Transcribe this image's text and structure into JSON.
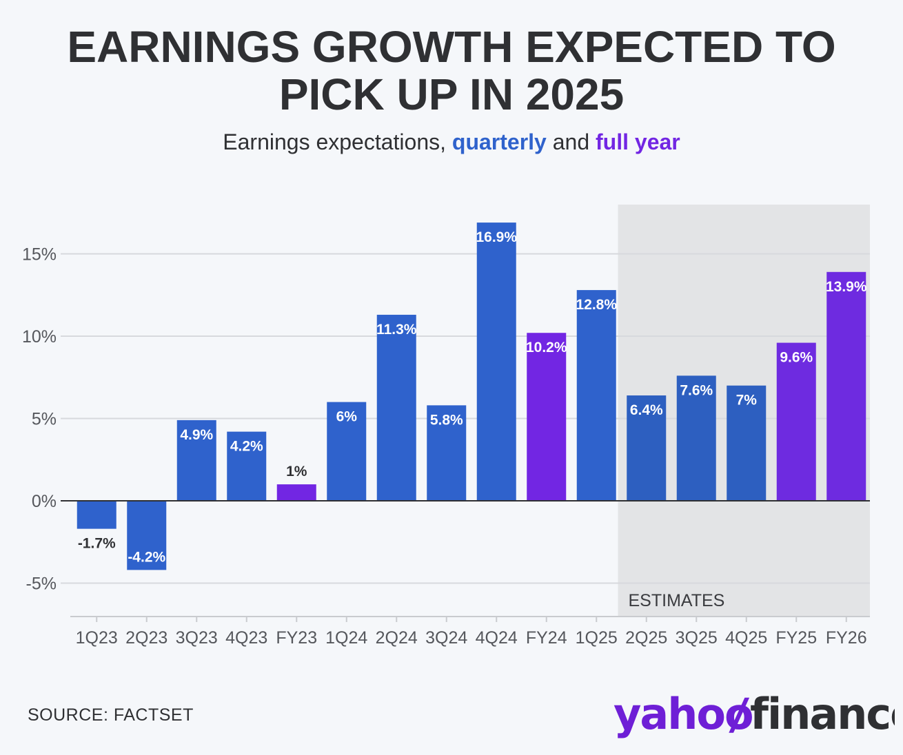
{
  "title_line1": "EARNINGS GROWTH EXPECTED TO",
  "title_line2": "PICK UP IN 2025",
  "subtitle": {
    "prefix": "Earnings expectations, ",
    "quarterly": "quarterly",
    "middle": " and ",
    "full_year": "full year"
  },
  "source": "SOURCE: FACTSET",
  "logo": {
    "yahoo": "yahoo",
    "bang": "/",
    "finance": "finance"
  },
  "colors": {
    "quarterly": "#2f62cc",
    "quarterly_estimate": "#2d5fc0",
    "full_year": "#7226e3",
    "full_year_estimate": "#6e2be0",
    "text": "#2f3033",
    "estimates_band": "#e3e4e6",
    "logo_purple": "#6e1fd6"
  },
  "chart_data": {
    "type": "bar",
    "title": "EARNINGS GROWTH EXPECTED TO PICK UP IN 2025",
    "subtitle": "Earnings expectations, quarterly and full year",
    "categories": [
      "1Q23",
      "2Q23",
      "3Q23",
      "4Q23",
      "FY23",
      "1Q24",
      "2Q24",
      "3Q24",
      "4Q24",
      "FY24",
      "1Q25",
      "2Q25",
      "3Q25",
      "4Q25",
      "FY25",
      "FY26"
    ],
    "values": [
      -1.7,
      -4.2,
      4.9,
      4.2,
      1,
      6,
      11.3,
      5.8,
      16.9,
      10.2,
      12.8,
      6.4,
      7.6,
      7,
      9.6,
      13.9
    ],
    "labels": [
      "-1.7%",
      "-4.2%",
      "4.9%",
      "4.2%",
      "1%",
      "6%",
      "11.3%",
      "5.8%",
      "16.9%",
      "10.2%",
      "12.8%",
      "6.4%",
      "7.6%",
      "7%",
      "9.6%",
      "13.9%"
    ],
    "kinds": [
      "quarterly",
      "quarterly",
      "quarterly",
      "quarterly",
      "full_year",
      "quarterly",
      "quarterly",
      "quarterly",
      "quarterly",
      "full_year",
      "quarterly",
      "quarterly",
      "quarterly",
      "quarterly",
      "full_year",
      "full_year"
    ],
    "yticks": [
      15,
      10,
      5,
      0,
      -5
    ],
    "ytick_labels": [
      "15%",
      "10%",
      "5%",
      "0%",
      "-5%"
    ],
    "ylim": [
      -7,
      18
    ],
    "estimates_from": "2Q25",
    "estimates_label": "ESTIMATES",
    "grid": true,
    "xlabel": "",
    "ylabel": ""
  }
}
